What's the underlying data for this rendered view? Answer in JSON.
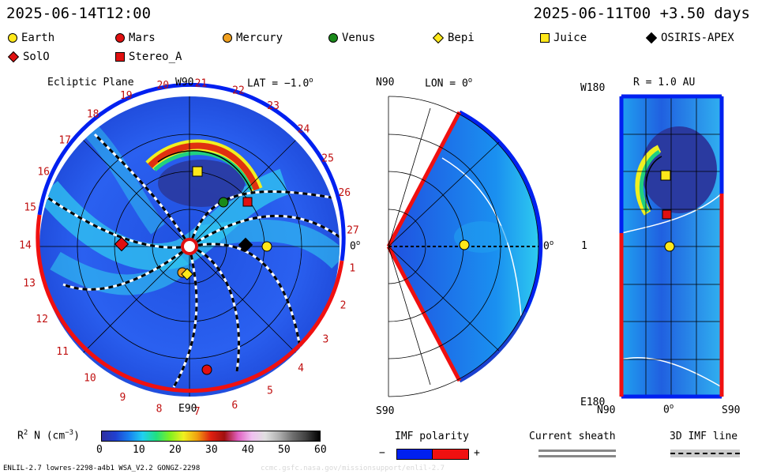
{
  "header": {
    "left_time": "2025-06-14T12:00",
    "right_time": "2025-06-11T00 +3.50 days"
  },
  "legend": [
    {
      "label": "Earth",
      "shape": "circle",
      "color": "#ffe81a"
    },
    {
      "label": "Mars",
      "shape": "circle",
      "color": "#e01010"
    },
    {
      "label": "Mercury",
      "shape": "circle",
      "color": "#f0a020"
    },
    {
      "label": "Venus",
      "shape": "circle",
      "color": "#1a8a1a"
    },
    {
      "label": "Bepi",
      "shape": "diamond",
      "color": "#ffe81a"
    },
    {
      "label": "Juice",
      "shape": "square",
      "color": "#ffe81a"
    },
    {
      "label": "OSIRIS-APEX",
      "shape": "diamond",
      "color": "#000000"
    },
    {
      "label": "SolO",
      "shape": "diamond",
      "color": "#e01010"
    },
    {
      "label": "Stereo_A",
      "shape": "square",
      "color": "#e01010"
    }
  ],
  "panels": {
    "ecliptic": {
      "title": "Ecliptic Plane",
      "top_label": "W90",
      "bottom_label": "E90",
      "lat_label": "LAT = −1.0",
      "right_label": "0",
      "rotation_numbers": [
        "27",
        "1",
        "2",
        "3",
        "4",
        "5",
        "6",
        "7",
        "8",
        "9",
        "10",
        "11",
        "12",
        "13",
        "14",
        "15",
        "16",
        "17",
        "18",
        "19",
        "20",
        "21",
        "22",
        "23",
        "24",
        "25",
        "26"
      ]
    },
    "meridional": {
      "top_label": "N90",
      "bottom_label": "S90",
      "lon_label": "LON = 0",
      "right_label": "0"
    },
    "radial": {
      "title": "R = 1.0 AU",
      "top_left": "W180",
      "bottom_left": "E180",
      "left_tick": "1",
      "x_left": "N90",
      "x_mid": "0",
      "x_right": "S90"
    }
  },
  "colorbar": {
    "label": "R",
    "label_sup": "2",
    "label_rest": " N (cm",
    "label_unit_sup": "−3",
    "label_end": ")",
    "ticks": [
      "0",
      "10",
      "20",
      "30",
      "40",
      "50",
      "60"
    ],
    "colors": [
      "#3030a0",
      "#2040d0",
      "#1880f0",
      "#20d0f0",
      "#20e080",
      "#80f020",
      "#f0f020",
      "#f0a010",
      "#e02010",
      "#a01010",
      "#e060c0",
      "#f0c0f0",
      "#e0e0e0",
      "#b0b0b0",
      "#707070",
      "#404040",
      "#000000"
    ]
  },
  "imf_polarity": {
    "title": "IMF polarity",
    "minus": "−",
    "plus": "+",
    "neg_color": "#0020f0",
    "pos_color": "#f01010"
  },
  "current_sheath": {
    "title": "Current sheath"
  },
  "imf_line": {
    "title": "3D IMF line"
  },
  "footer": {
    "left": "ENLIL-2.7 lowres-2298-a4b1 WSA_V2.2 GONGZ-2298",
    "right": "ccmc.gsfc.nasa.gov/missionsupport/enlil-2.7"
  }
}
